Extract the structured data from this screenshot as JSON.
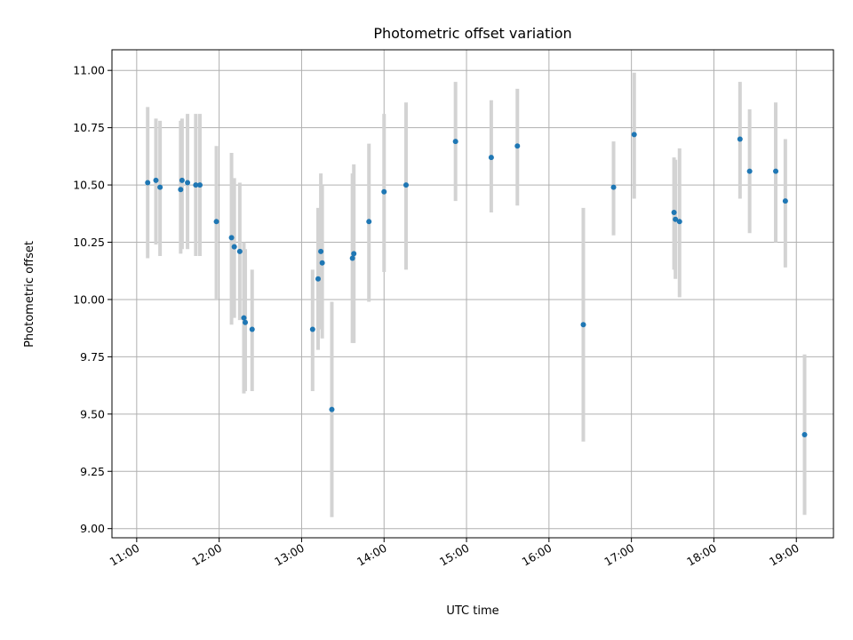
{
  "chart_data": {
    "type": "scatter",
    "title": "Photometric offset variation",
    "xlabel": "UTC time",
    "ylabel": "Photometric offset",
    "xlim": [
      "10:42",
      "19:27"
    ],
    "ylim": [
      8.96,
      11.09
    ],
    "x_ticks": [
      "11:00",
      "12:00",
      "13:00",
      "14:00",
      "15:00",
      "16:00",
      "17:00",
      "18:00",
      "19:00"
    ],
    "y_ticks": [
      "9.00",
      "9.25",
      "9.50",
      "9.75",
      "10.00",
      "10.25",
      "10.50",
      "10.75",
      "11.00"
    ],
    "grid": true,
    "marker_color": "#1f77b4",
    "errorbar_color": "#d3d3d3",
    "points": [
      {
        "time": "11:08",
        "y": 10.51,
        "low": 10.18,
        "high": 10.84
      },
      {
        "time": "11:14",
        "y": 10.52,
        "low": 10.24,
        "high": 10.79
      },
      {
        "time": "11:17",
        "y": 10.49,
        "low": 10.19,
        "high": 10.78
      },
      {
        "time": "11:32",
        "y": 10.48,
        "low": 10.2,
        "high": 10.78
      },
      {
        "time": "11:33",
        "y": 10.52,
        "low": 10.22,
        "high": 10.79
      },
      {
        "time": "11:37",
        "y": 10.51,
        "low": 10.22,
        "high": 10.81
      },
      {
        "time": "11:43",
        "y": 10.5,
        "low": 10.19,
        "high": 10.81
      },
      {
        "time": "11:46",
        "y": 10.5,
        "low": 10.19,
        "high": 10.81
      },
      {
        "time": "11:58",
        "y": 10.34,
        "low": 10.0,
        "high": 10.67
      },
      {
        "time": "12:09",
        "y": 10.27,
        "low": 9.89,
        "high": 10.64
      },
      {
        "time": "12:11",
        "y": 10.23,
        "low": 9.92,
        "high": 10.53
      },
      {
        "time": "12:15",
        "y": 10.21,
        "low": 9.91,
        "high": 10.51
      },
      {
        "time": "12:18",
        "y": 9.92,
        "low": 9.59,
        "high": 10.25
      },
      {
        "time": "12:19",
        "y": 9.9,
        "low": 9.6,
        "high": 10.22
      },
      {
        "time": "12:24",
        "y": 9.87,
        "low": 9.6,
        "high": 10.13
      },
      {
        "time": "13:08",
        "y": 9.87,
        "low": 9.6,
        "high": 10.13
      },
      {
        "time": "13:12",
        "y": 10.09,
        "low": 9.78,
        "high": 10.4
      },
      {
        "time": "13:14",
        "y": 10.21,
        "low": 9.87,
        "high": 10.55
      },
      {
        "time": "13:15",
        "y": 10.16,
        "low": 9.83,
        "high": 10.5
      },
      {
        "time": "13:22",
        "y": 9.52,
        "low": 9.05,
        "high": 9.99
      },
      {
        "time": "13:37",
        "y": 10.18,
        "low": 9.81,
        "high": 10.55
      },
      {
        "time": "13:38",
        "y": 10.2,
        "low": 9.81,
        "high": 10.59
      },
      {
        "time": "13:49",
        "y": 10.34,
        "low": 9.99,
        "high": 10.68
      },
      {
        "time": "14:00",
        "y": 10.47,
        "low": 10.12,
        "high": 10.81
      },
      {
        "time": "14:16",
        "y": 10.5,
        "low": 10.13,
        "high": 10.86
      },
      {
        "time": "14:52",
        "y": 10.69,
        "low": 10.43,
        "high": 10.95
      },
      {
        "time": "15:18",
        "y": 10.62,
        "low": 10.38,
        "high": 10.87
      },
      {
        "time": "15:37",
        "y": 10.67,
        "low": 10.41,
        "high": 10.92
      },
      {
        "time": "16:25",
        "y": 9.89,
        "low": 9.38,
        "high": 10.4
      },
      {
        "time": "16:47",
        "y": 10.49,
        "low": 10.28,
        "high": 10.69
      },
      {
        "time": "17:02",
        "y": 10.72,
        "low": 10.44,
        "high": 10.99
      },
      {
        "time": "17:31",
        "y": 10.38,
        "low": 10.13,
        "high": 10.62
      },
      {
        "time": "17:32",
        "y": 10.35,
        "low": 10.09,
        "high": 10.61
      },
      {
        "time": "17:35",
        "y": 10.34,
        "low": 10.01,
        "high": 10.66
      },
      {
        "time": "18:19",
        "y": 10.7,
        "low": 10.44,
        "high": 10.95
      },
      {
        "time": "18:26",
        "y": 10.56,
        "low": 10.29,
        "high": 10.83
      },
      {
        "time": "18:45",
        "y": 10.56,
        "low": 10.25,
        "high": 10.86
      },
      {
        "time": "18:52",
        "y": 10.43,
        "low": 10.14,
        "high": 10.7
      },
      {
        "time": "19:06",
        "y": 9.41,
        "low": 9.06,
        "high": 9.76
      }
    ]
  }
}
